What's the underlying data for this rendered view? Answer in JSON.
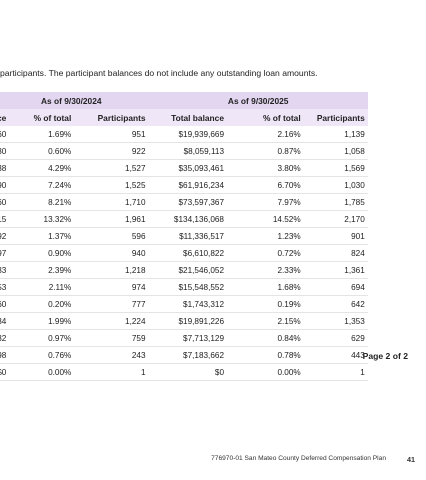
{
  "intro_text": "participants. The participant balances do not include any outstanding loan amounts.",
  "table": {
    "group_headers": [
      "As of 9/30/2024",
      "As of 9/30/2025"
    ],
    "column_headers": [
      "ce",
      "% of total",
      "Participants",
      "Total balance",
      "% of total",
      "Participants"
    ],
    "rows": [
      [
        "60",
        "1.69%",
        "951",
        "$19,939,669",
        "2.16%",
        "1,139"
      ],
      [
        "30",
        "0.60%",
        "922",
        "$8,059,113",
        "0.87%",
        "1,058"
      ],
      [
        "38",
        "4.29%",
        "1,527",
        "$35,093,461",
        "3.80%",
        "1,569"
      ],
      [
        "90",
        "7.24%",
        "1,525",
        "$61,916,234",
        "6.70%",
        "1,030"
      ],
      [
        "60",
        "8.21%",
        "1,710",
        "$73,597,367",
        "7.97%",
        "1,785"
      ],
      [
        "15",
        "13.32%",
        "1,961",
        "$134,136,068",
        "14.52%",
        "2,170"
      ],
      [
        "92",
        "1.37%",
        "596",
        "$11,336,517",
        "1.23%",
        "901"
      ],
      [
        "97",
        "0.90%",
        "940",
        "$6,610,822",
        "0.72%",
        "824"
      ],
      [
        "33",
        "2.39%",
        "1,218",
        "$21,546,052",
        "2.33%",
        "1,361"
      ],
      [
        "53",
        "2.11%",
        "974",
        "$15,548,552",
        "1.68%",
        "694"
      ],
      [
        "60",
        "0.20%",
        "777",
        "$1,743,312",
        "0.19%",
        "642"
      ],
      [
        "34",
        "1.99%",
        "1,224",
        "$19,891,226",
        "2.15%",
        "1,353"
      ],
      [
        "32",
        "0.97%",
        "759",
        "$7,713,129",
        "0.84%",
        "629"
      ],
      [
        "98",
        "0.76%",
        "243",
        "$7,183,662",
        "0.78%",
        "443"
      ],
      [
        "$0",
        "0.00%",
        "1",
        "$0",
        "0.00%",
        "1"
      ]
    ]
  },
  "page_note": "Page 2 of 2",
  "footer": {
    "plan": "776970-01 San Mateo County Deferred Compensation Plan",
    "page_number": "41"
  }
}
